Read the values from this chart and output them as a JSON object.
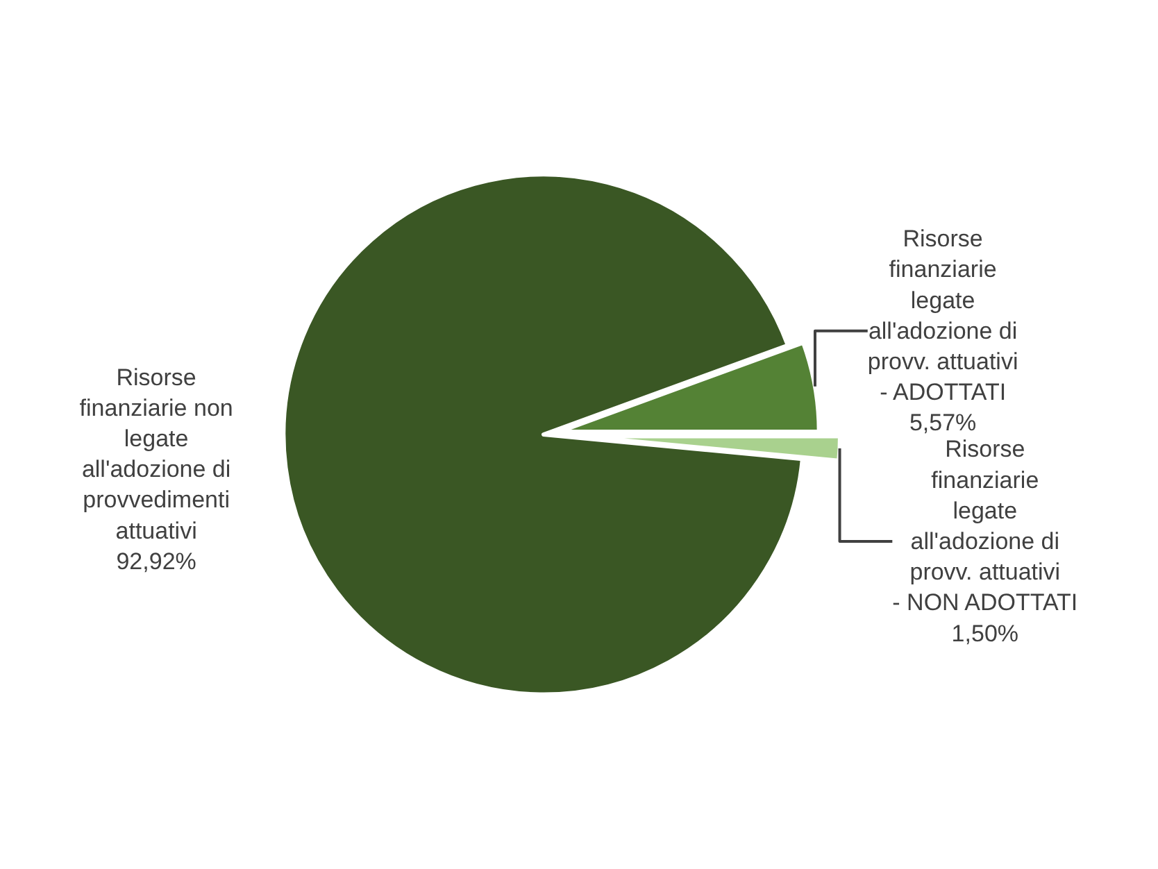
{
  "chart_data": {
    "type": "pie",
    "categories": [
      "Risorse finanziarie non legate all'adozione di provvedimenti attuativi",
      "Risorse finanziarie legate all'adozione di provv. attuativi - ADOTTATI",
      "Risorse finanziarie legate all'adozione di provv. attuativi - NON ADOTTATI"
    ],
    "values": [
      92.92,
      5.57,
      1.5
    ],
    "value_labels": [
      "92,92%",
      "5,57%",
      "1,50%"
    ],
    "colors": [
      "#3a5724",
      "#548235",
      "#a9d18e"
    ],
    "legend": false
  }
}
